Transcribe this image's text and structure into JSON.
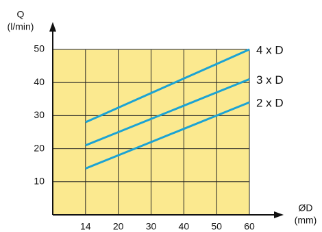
{
  "chart_data": {
    "type": "line",
    "y_label": "Q",
    "y_unit": "(l/min)",
    "x_label": "ØD",
    "x_unit": "(mm)",
    "categories": [
      "14",
      "20",
      "30",
      "40",
      "50",
      "60"
    ],
    "series": [
      {
        "name": "4 x D",
        "color": "#1ba3d4",
        "values": [
          28,
          32.4,
          36.8,
          41.2,
          45.6,
          50
        ]
      },
      {
        "name": "3 x D",
        "color": "#1ba3d4",
        "values": [
          21,
          25,
          29,
          33,
          37,
          41
        ]
      },
      {
        "name": "2 x D",
        "color": "#1ba3d4",
        "values": [
          14,
          18,
          22,
          26,
          30,
          34
        ]
      }
    ],
    "ylim": [
      0,
      50
    ],
    "yticks": [
      10,
      20,
      30,
      40,
      50
    ],
    "grid": true
  }
}
